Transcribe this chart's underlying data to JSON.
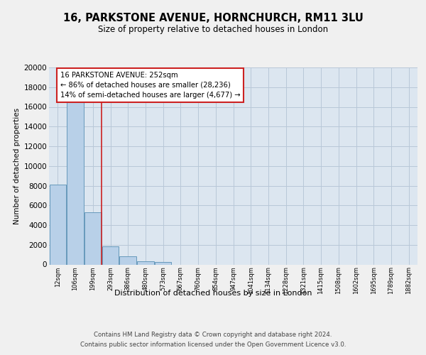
{
  "title": "16, PARKSTONE AVENUE, HORNCHURCH, RM11 3LU",
  "subtitle": "Size of property relative to detached houses in London",
  "xlabel": "Distribution of detached houses by size in London",
  "ylabel": "Number of detached properties",
  "bar_values": [
    8100,
    16600,
    5300,
    1850,
    800,
    300,
    250,
    0,
    0,
    0,
    0,
    0,
    0,
    0,
    0,
    0,
    0,
    0,
    0,
    0,
    0
  ],
  "categories": [
    "12sqm",
    "106sqm",
    "199sqm",
    "293sqm",
    "386sqm",
    "480sqm",
    "573sqm",
    "667sqm",
    "760sqm",
    "854sqm",
    "947sqm",
    "1041sqm",
    "1134sqm",
    "1228sqm",
    "1321sqm",
    "1415sqm",
    "1508sqm",
    "1602sqm",
    "1695sqm",
    "1789sqm",
    "1882sqm"
  ],
  "bar_color": "#b8d0e8",
  "bar_edge_color": "#6699bb",
  "background_color": "#dce6f0",
  "grid_color": "#b8c8d8",
  "fig_bg_color": "#f0f0f0",
  "annotation_box_color": "#ffffff",
  "annotation_border_color": "#cc2222",
  "red_line_x": 2.5,
  "annotation_title": "16 PARKSTONE AVENUE: 252sqm",
  "annotation_line1": "← 86% of detached houses are smaller (28,236)",
  "annotation_line2": "14% of semi-detached houses are larger (4,677) →",
  "ylim": [
    0,
    20000
  ],
  "yticks": [
    0,
    2000,
    4000,
    6000,
    8000,
    10000,
    12000,
    14000,
    16000,
    18000,
    20000
  ],
  "footer_line1": "Contains HM Land Registry data © Crown copyright and database right 2024.",
  "footer_line2": "Contains public sector information licensed under the Open Government Licence v3.0."
}
